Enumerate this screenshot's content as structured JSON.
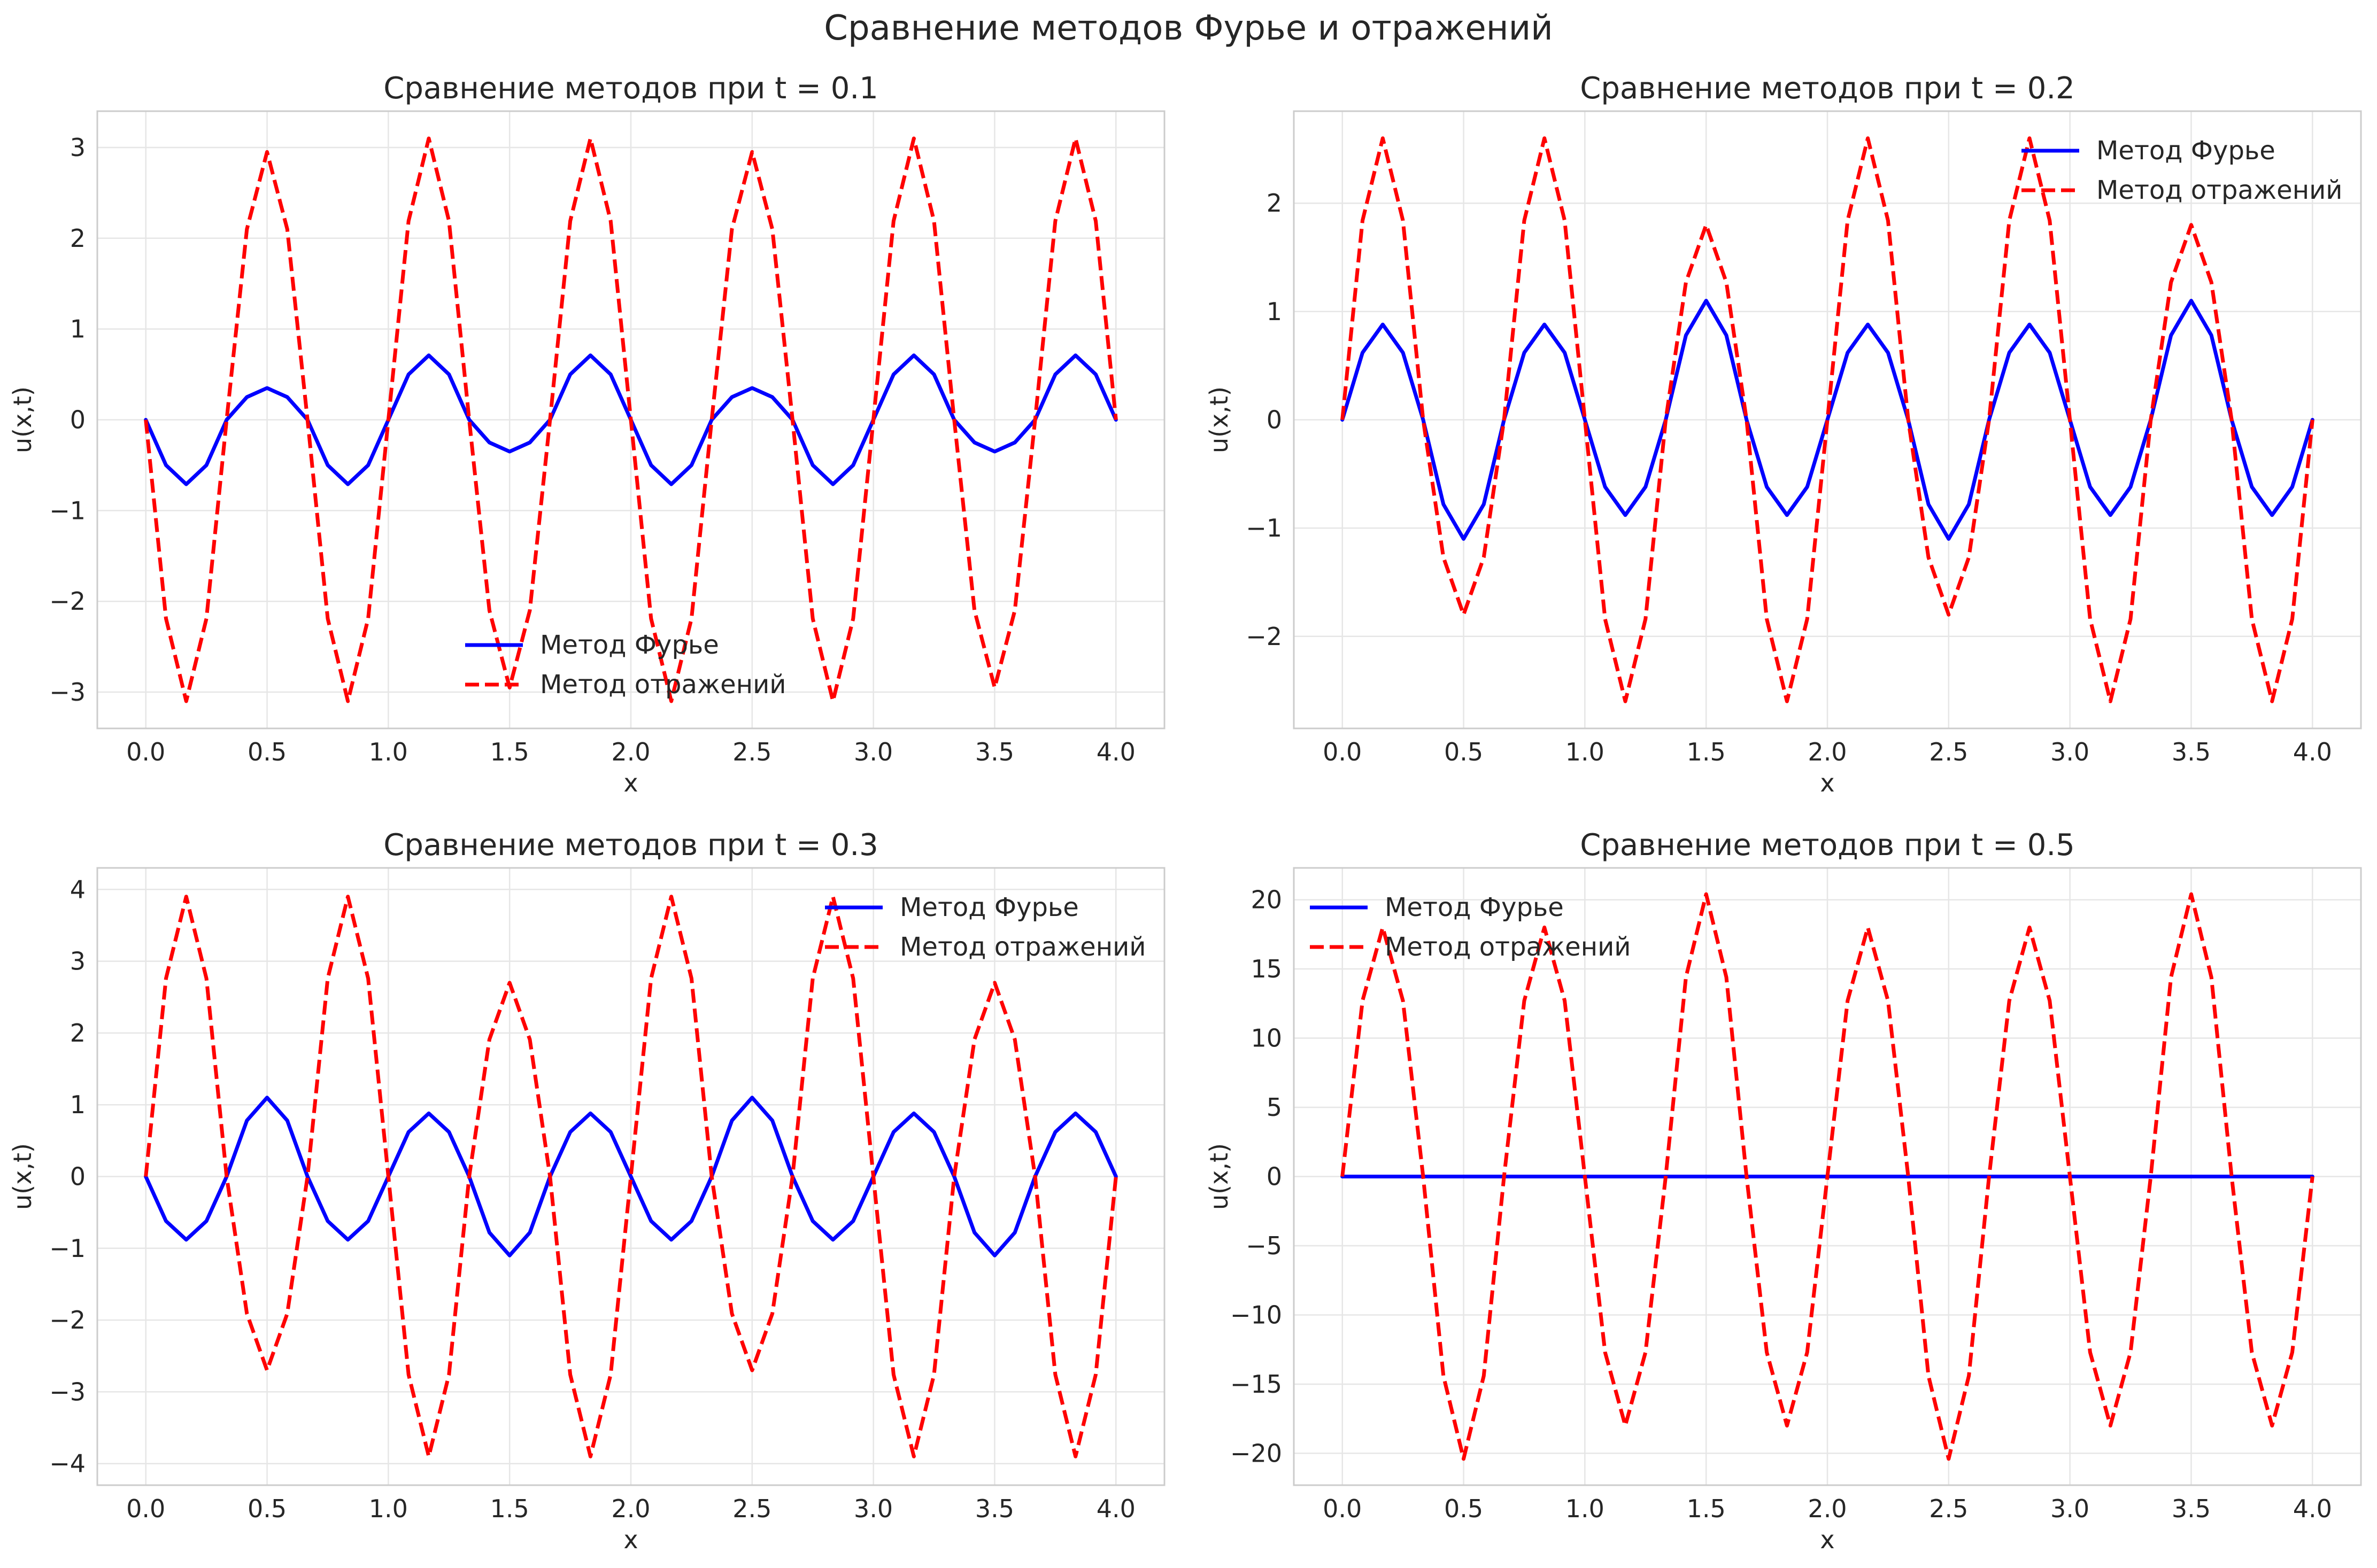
{
  "suptitle": "Сравнение методов Фурье и отражений",
  "colors": {
    "fourier": "#0000ff",
    "reflection": "#ff0000",
    "grid": "#e6e6e6",
    "frame": "#cccccc",
    "text": "#262626"
  },
  "chart_data": [
    {
      "type": "line",
      "title": "Сравнение методов при t = 0.1",
      "xlabel": "x",
      "ylabel": "u(x,t)",
      "xlim": [
        -0.2,
        4.2
      ],
      "ylim": [
        -3.4,
        3.4
      ],
      "xticks": [
        0.0,
        0.5,
        1.0,
        1.5,
        2.0,
        2.5,
        3.0,
        3.5,
        4.0
      ],
      "xtick_labels": [
        "0.0",
        "0.5",
        "1.0",
        "1.5",
        "2.0",
        "2.5",
        "3.0",
        "3.5",
        "4.0"
      ],
      "yticks": [
        -3,
        -2,
        -1,
        0,
        1,
        2,
        3
      ],
      "ytick_labels": [
        "−3",
        "−2",
        "−1",
        "0",
        "1",
        "2",
        "3"
      ],
      "legend": "lower-center",
      "grid": true,
      "x": [
        0.0,
        0.0833,
        0.1667,
        0.25,
        0.3333,
        0.4167,
        0.5,
        0.5833,
        0.6667,
        0.75,
        0.8333,
        0.9167,
        1.0,
        1.0833,
        1.1667,
        1.25,
        1.3333,
        1.4167,
        1.5,
        1.5833,
        1.6667,
        1.75,
        1.8333,
        1.9167,
        2.0,
        2.0833,
        2.1667,
        2.25,
        2.3333,
        2.4167,
        2.5,
        2.5833,
        2.6667,
        2.75,
        2.8333,
        2.9167,
        3.0,
        3.0833,
        3.1667,
        3.25,
        3.3333,
        3.4167,
        3.5,
        3.5833,
        3.6667,
        3.75,
        3.8333,
        3.9167,
        4.0
      ],
      "series": [
        {
          "name": "Метод Фурье",
          "style": "solid",
          "values": [
            0.0,
            -0.5,
            -0.71,
            -0.5,
            0.0,
            0.25,
            0.35,
            0.25,
            0.0,
            -0.5,
            -0.71,
            -0.5,
            0.0,
            0.5,
            0.71,
            0.5,
            0.0,
            -0.25,
            -0.35,
            -0.25,
            0.0,
            0.5,
            0.71,
            0.5,
            0.0,
            -0.5,
            -0.71,
            -0.5,
            0.0,
            0.25,
            0.35,
            0.25,
            0.0,
            -0.5,
            -0.71,
            -0.5,
            0.0,
            0.5,
            0.71,
            0.5,
            0.0,
            -0.25,
            -0.35,
            -0.25,
            0.0,
            0.5,
            0.71,
            0.5,
            0.0
          ]
        },
        {
          "name": "Метод отражений",
          "style": "dashed",
          "values": [
            0.0,
            -2.19,
            -3.1,
            -2.19,
            0.0,
            2.1,
            2.95,
            2.1,
            0.0,
            -2.19,
            -3.1,
            -2.19,
            0.0,
            2.19,
            3.1,
            2.19,
            0.0,
            -2.1,
            -2.95,
            -2.1,
            0.0,
            2.19,
            3.1,
            2.19,
            0.0,
            -2.19,
            -3.1,
            -2.19,
            0.0,
            2.1,
            2.95,
            2.1,
            0.0,
            -2.19,
            -3.1,
            -2.19,
            0.0,
            2.19,
            3.1,
            2.19,
            0.0,
            -2.1,
            -2.95,
            -2.1,
            0.0,
            2.19,
            3.1,
            2.19,
            0.0
          ]
        }
      ]
    },
    {
      "type": "line",
      "title": "Сравнение методов при t = 0.2",
      "xlabel": "x",
      "ylabel": "u(x,t)",
      "xlim": [
        -0.2,
        4.2
      ],
      "ylim": [
        -2.85,
        2.85
      ],
      "xticks": [
        0.0,
        0.5,
        1.0,
        1.5,
        2.0,
        2.5,
        3.0,
        3.5,
        4.0
      ],
      "xtick_labels": [
        "0.0",
        "0.5",
        "1.0",
        "1.5",
        "2.0",
        "2.5",
        "3.0",
        "3.5",
        "4.0"
      ],
      "yticks": [
        -2,
        -1,
        0,
        1,
        2
      ],
      "ytick_labels": [
        "−2",
        "−1",
        "0",
        "1",
        "2"
      ],
      "legend": "top-right",
      "grid": true,
      "x": [
        0.0,
        0.0833,
        0.1667,
        0.25,
        0.3333,
        0.4167,
        0.5,
        0.5833,
        0.6667,
        0.75,
        0.8333,
        0.9167,
        1.0,
        1.0833,
        1.1667,
        1.25,
        1.3333,
        1.4167,
        1.5,
        1.5833,
        1.6667,
        1.75,
        1.8333,
        1.9167,
        2.0,
        2.0833,
        2.1667,
        2.25,
        2.3333,
        2.4167,
        2.5,
        2.5833,
        2.6667,
        2.75,
        2.8333,
        2.9167,
        3.0,
        3.0833,
        3.1667,
        3.25,
        3.3333,
        3.4167,
        3.5,
        3.5833,
        3.6667,
        3.75,
        3.8333,
        3.9167,
        4.0
      ],
      "series": [
        {
          "name": "Метод Фурье",
          "style": "solid",
          "values": [
            0.0,
            0.62,
            0.88,
            0.62,
            0.0,
            -0.78,
            -1.1,
            -0.78,
            0.0,
            0.62,
            0.88,
            0.62,
            0.0,
            -0.62,
            -0.88,
            -0.62,
            0.0,
            0.78,
            1.1,
            0.78,
            0.0,
            -0.62,
            -0.88,
            -0.62,
            0.0,
            0.62,
            0.88,
            0.62,
            0.0,
            -0.78,
            -1.1,
            -0.78,
            0.0,
            0.62,
            0.88,
            0.62,
            0.0,
            -0.62,
            -0.88,
            -0.62,
            0.0,
            0.78,
            1.1,
            0.78,
            0.0,
            -0.62,
            -0.88,
            -0.62,
            0.0
          ]
        },
        {
          "name": "Метод отражений",
          "style": "dashed",
          "values": [
            0.0,
            1.84,
            2.6,
            1.84,
            0.0,
            -1.27,
            -1.8,
            -1.27,
            0.0,
            1.84,
            2.6,
            1.84,
            0.0,
            -1.84,
            -2.6,
            -1.84,
            0.0,
            1.27,
            1.8,
            1.27,
            0.0,
            -1.84,
            -2.6,
            -1.84,
            0.0,
            1.84,
            2.6,
            1.84,
            0.0,
            -1.27,
            -1.8,
            -1.27,
            0.0,
            1.84,
            2.6,
            1.84,
            0.0,
            -1.84,
            -2.6,
            -1.84,
            0.0,
            1.27,
            1.8,
            1.27,
            0.0,
            -1.84,
            -2.6,
            -1.84,
            0.0
          ]
        }
      ]
    },
    {
      "type": "line",
      "title": "Сравнение методов при t = 0.3",
      "xlabel": "x",
      "ylabel": "u(x,t)",
      "xlim": [
        -0.2,
        4.2
      ],
      "ylim": [
        -4.3,
        4.3
      ],
      "xticks": [
        0.0,
        0.5,
        1.0,
        1.5,
        2.0,
        2.5,
        3.0,
        3.5,
        4.0
      ],
      "xtick_labels": [
        "0.0",
        "0.5",
        "1.0",
        "1.5",
        "2.0",
        "2.5",
        "3.0",
        "3.5",
        "4.0"
      ],
      "yticks": [
        -4,
        -3,
        -2,
        -1,
        0,
        1,
        2,
        3,
        4
      ],
      "ytick_labels": [
        "−4",
        "−3",
        "−2",
        "−1",
        "0",
        "1",
        "2",
        "3",
        "4"
      ],
      "legend": "top-right",
      "grid": true,
      "x": [
        0.0,
        0.0833,
        0.1667,
        0.25,
        0.3333,
        0.4167,
        0.5,
        0.5833,
        0.6667,
        0.75,
        0.8333,
        0.9167,
        1.0,
        1.0833,
        1.1667,
        1.25,
        1.3333,
        1.4167,
        1.5,
        1.5833,
        1.6667,
        1.75,
        1.8333,
        1.9167,
        2.0,
        2.0833,
        2.1667,
        2.25,
        2.3333,
        2.4167,
        2.5,
        2.5833,
        2.6667,
        2.75,
        2.8333,
        2.9167,
        3.0,
        3.0833,
        3.1667,
        3.25,
        3.3333,
        3.4167,
        3.5,
        3.5833,
        3.6667,
        3.75,
        3.8333,
        3.9167,
        4.0
      ],
      "series": [
        {
          "name": "Метод Фурье",
          "style": "solid",
          "values": [
            0.0,
            -0.62,
            -0.88,
            -0.62,
            0.0,
            0.78,
            1.1,
            0.78,
            0.0,
            -0.62,
            -0.88,
            -0.62,
            0.0,
            0.62,
            0.88,
            0.62,
            0.0,
            -0.78,
            -1.1,
            -0.78,
            0.0,
            0.62,
            0.88,
            0.62,
            0.0,
            -0.62,
            -0.88,
            -0.62,
            0.0,
            0.78,
            1.1,
            0.78,
            0.0,
            -0.62,
            -0.88,
            -0.62,
            0.0,
            0.62,
            0.88,
            0.62,
            0.0,
            -0.78,
            -1.1,
            -0.78,
            0.0,
            0.62,
            0.88,
            0.62,
            0.0
          ]
        },
        {
          "name": "Метод отражений",
          "style": "dashed",
          "values": [
            0.0,
            2.76,
            3.9,
            2.76,
            0.0,
            -1.91,
            -2.7,
            -1.91,
            0.0,
            2.76,
            3.9,
            2.76,
            0.0,
            -2.76,
            -3.9,
            -2.76,
            0.0,
            1.91,
            2.7,
            1.91,
            0.0,
            -2.76,
            -3.9,
            -2.76,
            0.0,
            2.76,
            3.9,
            2.76,
            0.0,
            -1.91,
            -2.7,
            -1.91,
            0.0,
            2.76,
            3.9,
            2.76,
            0.0,
            -2.76,
            -3.9,
            -2.76,
            0.0,
            1.91,
            2.7,
            1.91,
            0.0,
            -2.76,
            -3.9,
            -2.76,
            0.0
          ]
        }
      ]
    },
    {
      "type": "line",
      "title": "Сравнение методов при t = 0.5",
      "xlabel": "x",
      "ylabel": "u(x,t)",
      "xlim": [
        -0.2,
        4.2
      ],
      "ylim": [
        -22.3,
        22.3
      ],
      "xticks": [
        0.0,
        0.5,
        1.0,
        1.5,
        2.0,
        2.5,
        3.0,
        3.5,
        4.0
      ],
      "xtick_labels": [
        "0.0",
        "0.5",
        "1.0",
        "1.5",
        "2.0",
        "2.5",
        "3.0",
        "3.5",
        "4.0"
      ],
      "yticks": [
        -20,
        -15,
        -10,
        -5,
        0,
        5,
        10,
        15,
        20
      ],
      "ytick_labels": [
        "−20",
        "−15",
        "−10",
        "−5",
        "0",
        "5",
        "10",
        "15",
        "20"
      ],
      "legend": "top-left",
      "grid": true,
      "x": [
        0.0,
        0.0833,
        0.1667,
        0.25,
        0.3333,
        0.4167,
        0.5,
        0.5833,
        0.6667,
        0.75,
        0.8333,
        0.9167,
        1.0,
        1.0833,
        1.1667,
        1.25,
        1.3333,
        1.4167,
        1.5,
        1.5833,
        1.6667,
        1.75,
        1.8333,
        1.9167,
        2.0,
        2.0833,
        2.1667,
        2.25,
        2.3333,
        2.4167,
        2.5,
        2.5833,
        2.6667,
        2.75,
        2.8333,
        2.9167,
        3.0,
        3.0833,
        3.1667,
        3.25,
        3.3333,
        3.4167,
        3.5,
        3.5833,
        3.6667,
        3.75,
        3.8333,
        3.9167,
        4.0
      ],
      "series": [
        {
          "name": "Метод Фурье",
          "style": "solid",
          "values": [
            0.0,
            0.0,
            0.0,
            0.0,
            0.0,
            0.0,
            0.0,
            0.0,
            0.0,
            0.0,
            0.0,
            0.0,
            0.0,
            0.0,
            0.0,
            0.0,
            0.0,
            0.0,
            0.0,
            0.0,
            0.0,
            0.0,
            0.0,
            0.0,
            0.0,
            0.0,
            0.0,
            0.0,
            0.0,
            0.0,
            0.0,
            0.0,
            0.0,
            0.0,
            0.0,
            0.0,
            0.0,
            0.0,
            0.0,
            0.0,
            0.0,
            0.0,
            0.0,
            0.0,
            0.0,
            0.0,
            0.0,
            0.0,
            0.0
          ]
        },
        {
          "name": "Метод отражений",
          "style": "dashed",
          "values": [
            0.0,
            12.7,
            18.0,
            12.7,
            0.0,
            -14.4,
            -20.4,
            -14.4,
            0.0,
            12.7,
            18.0,
            12.7,
            0.0,
            -12.7,
            -18.0,
            -12.7,
            0.0,
            14.4,
            20.4,
            14.4,
            0.0,
            -12.7,
            -18.0,
            -12.7,
            0.0,
            12.7,
            18.0,
            12.7,
            0.0,
            -14.4,
            -20.4,
            -14.4,
            0.0,
            12.7,
            18.0,
            12.7,
            0.0,
            -12.7,
            -18.0,
            -12.7,
            0.0,
            14.4,
            20.4,
            14.4,
            0.0,
            -12.7,
            -18.0,
            -12.7,
            0.0
          ]
        }
      ]
    }
  ]
}
